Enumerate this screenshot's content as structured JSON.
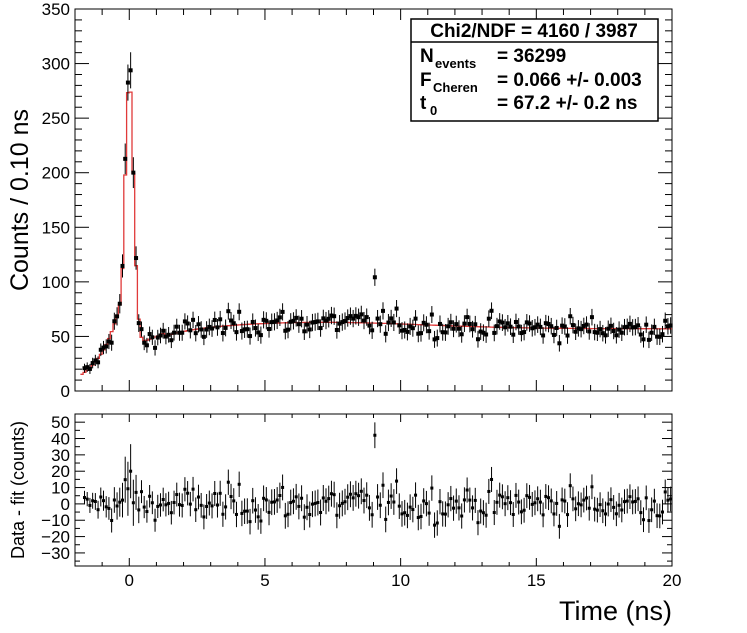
{
  "chart_data": [
    {
      "type": "scatter",
      "panel": "top",
      "title": "",
      "xlabel": "",
      "ylabel": "Counts / 0.10 ns",
      "xlim": [
        -2,
        20
      ],
      "ylim": [
        0,
        350
      ],
      "xticks": [
        0,
        5,
        10,
        15,
        20
      ],
      "yticks": [
        0,
        50,
        100,
        150,
        200,
        250,
        300,
        350
      ],
      "ytick_labels": [
        "0",
        "50",
        "100",
        "150",
        "200",
        "250",
        "300",
        "350"
      ],
      "series": [
        {
          "name": "data",
          "style": "points with error bars",
          "color": "#000000"
        },
        {
          "name": "fit",
          "style": "step line",
          "color": "#e03a3a"
        }
      ],
      "peak": {
        "x": 0.0,
        "y": 285
      },
      "baseline_y": 57,
      "stats": {
        "chi2": "Chi2/NDF = 4160 / 3987",
        "nevents_main": "N",
        "nevents_sub": "events",
        "nevents_value": "= 36299",
        "fcheren_main": "F",
        "fcheren_sub": "Cheren",
        "fcheren_value": "= 0.066 +/- 0.003",
        "t0_main": "t",
        "t0_sub": "0",
        "t0_value": "= 67.2 +/- 0.2 ns"
      }
    },
    {
      "type": "scatter",
      "panel": "bottom",
      "title": "",
      "xlabel": "Time (ns)",
      "ylabel": "Data - fit (counts)",
      "xlim": [
        -2,
        20
      ],
      "ylim": [
        -38,
        55
      ],
      "xticks": [
        0,
        5,
        10,
        15,
        20
      ],
      "xtick_labels": [
        "0",
        "5",
        "10",
        "15",
        "20"
      ],
      "yticks": [
        -30,
        -20,
        -10,
        0,
        10,
        20,
        30,
        40,
        50
      ],
      "ytick_labels": [
        "−30",
        "−20",
        "−10",
        "0",
        "10",
        "20",
        "30",
        "40",
        "50"
      ],
      "series": [
        {
          "name": "residuals",
          "style": "points with error bars",
          "color": "#000000"
        }
      ]
    }
  ],
  "colors": {
    "fit": "#e03a3a",
    "data": "#000000",
    "axes": "#000000"
  }
}
